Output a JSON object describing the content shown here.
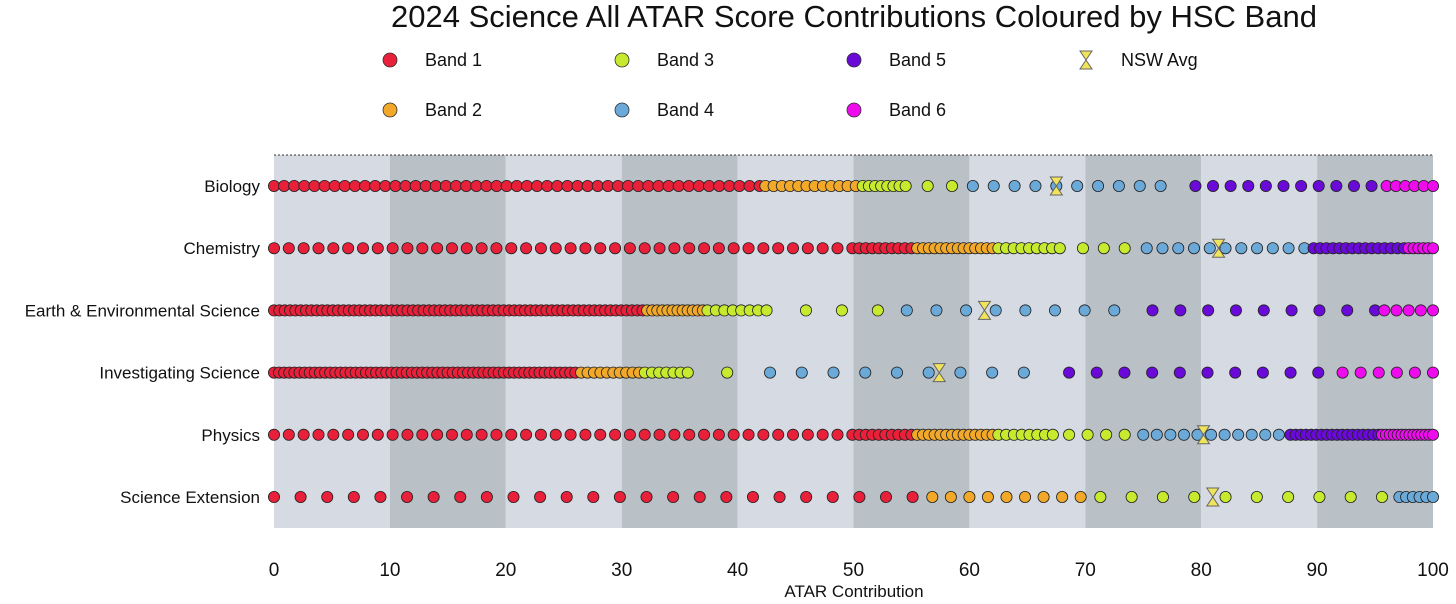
{
  "chart_data": {
    "type": "scatter",
    "title": "2024 Science All ATAR Score Contributions Coloured by HSC Band",
    "xlabel": "ATAR Contribution",
    "ylabel": "",
    "xlim": [
      0,
      100
    ],
    "xticks": [
      "0",
      "10",
      "20",
      "30",
      "40",
      "50",
      "60",
      "70",
      "80",
      "90",
      "100"
    ],
    "bands": [
      {
        "name": "Band 1",
        "color": "#e8203a"
      },
      {
        "name": "Band 2",
        "color": "#f2a92a"
      },
      {
        "name": "Band 3",
        "color": "#c8ea2e"
      },
      {
        "name": "Band 4",
        "color": "#6aa9d8"
      },
      {
        "name": "Band 5",
        "color": "#6a0ad8"
      },
      {
        "name": "Band 6",
        "color": "#ee0cee"
      }
    ],
    "avg_legend": "NSW Avg",
    "avg_color": "#f0e45a",
    "subjects": [
      {
        "name": "Biology",
        "nsw_avg": 67.5,
        "segments": [
          {
            "band": 0,
            "start": 0,
            "end": 41.9,
            "count": 49
          },
          {
            "band": 1,
            "start": 42.4,
            "end": 50.2,
            "count": 12
          },
          {
            "band": 2,
            "start": 50.8,
            "end": 54.5,
            "count": 8
          },
          {
            "band": 2,
            "start": 56.4,
            "end": 58.5,
            "count": 2
          },
          {
            "band": 3,
            "start": 60.3,
            "end": 76.5,
            "count": 10
          },
          {
            "band": 4,
            "start": 79.5,
            "end": 94.7,
            "count": 11
          },
          {
            "band": 5,
            "start": 96.0,
            "end": 100,
            "count": 6
          }
        ]
      },
      {
        "name": "Chemistry",
        "nsw_avg": 81.5,
        "segments": [
          {
            "band": 0,
            "start": 0,
            "end": 49.9,
            "count": 40
          },
          {
            "band": 0,
            "start": 50.5,
            "end": 55.0,
            "count": 9
          },
          {
            "band": 1,
            "start": 55.5,
            "end": 62.0,
            "count": 14
          },
          {
            "band": 2,
            "start": 62.5,
            "end": 67.8,
            "count": 9
          },
          {
            "band": 2,
            "start": 69.8,
            "end": 73.4,
            "count": 3
          },
          {
            "band": 3,
            "start": 75.3,
            "end": 88.9,
            "count": 11
          },
          {
            "band": 4,
            "start": 89.7,
            "end": 97.5,
            "count": 15
          },
          {
            "band": 5,
            "start": 97.9,
            "end": 100,
            "count": 6
          }
        ]
      },
      {
        "name": "Earth & Environmental Science",
        "nsw_avg": 61.3,
        "segments": [
          {
            "band": 0,
            "start": 0,
            "end": 31.8,
            "count": 70
          },
          {
            "band": 1,
            "start": 32.2,
            "end": 37.0,
            "count": 12
          },
          {
            "band": 2,
            "start": 37.4,
            "end": 42.5,
            "count": 8
          },
          {
            "band": 2,
            "start": 45.9,
            "end": 52.1,
            "count": 3
          },
          {
            "band": 3,
            "start": 54.6,
            "end": 72.5,
            "count": 8
          },
          {
            "band": 4,
            "start": 75.8,
            "end": 95.0,
            "count": 9
          },
          {
            "band": 5,
            "start": 95.8,
            "end": 100,
            "count": 5
          }
        ]
      },
      {
        "name": "Investigating Science",
        "nsw_avg": 57.4,
        "segments": [
          {
            "band": 0,
            "start": 0,
            "end": 26.0,
            "count": 60
          },
          {
            "band": 1,
            "start": 26.5,
            "end": 31.5,
            "count": 10
          },
          {
            "band": 2,
            "start": 32.0,
            "end": 35.7,
            "count": 7
          },
          {
            "band": 2,
            "start": 39.1,
            "end": 39.1,
            "count": 1
          },
          {
            "band": 3,
            "start": 42.8,
            "end": 64.7,
            "count": 9
          },
          {
            "band": 4,
            "start": 68.6,
            "end": 90.1,
            "count": 10
          },
          {
            "band": 5,
            "start": 92.2,
            "end": 100,
            "count": 6
          }
        ]
      },
      {
        "name": "Physics",
        "nsw_avg": 80.2,
        "segments": [
          {
            "band": 0,
            "start": 0,
            "end": 49.9,
            "count": 40
          },
          {
            "band": 0,
            "start": 50.5,
            "end": 55.0,
            "count": 9
          },
          {
            "band": 1,
            "start": 55.5,
            "end": 62.0,
            "count": 14
          },
          {
            "band": 2,
            "start": 62.5,
            "end": 67.2,
            "count": 8
          },
          {
            "band": 2,
            "start": 68.6,
            "end": 73.4,
            "count": 4
          },
          {
            "band": 3,
            "start": 75.0,
            "end": 86.7,
            "count": 11
          },
          {
            "band": 4,
            "start": 87.7,
            "end": 95.3,
            "count": 18
          },
          {
            "band": 5,
            "start": 95.6,
            "end": 100,
            "count": 14
          }
        ]
      },
      {
        "name": "Science Extension",
        "nsw_avg": 81.0,
        "segments": [
          {
            "band": 0,
            "start": 0,
            "end": 55.1,
            "count": 25
          },
          {
            "band": 1,
            "start": 56.8,
            "end": 69.6,
            "count": 9
          },
          {
            "band": 2,
            "start": 71.3,
            "end": 95.6,
            "count": 10
          },
          {
            "band": 3,
            "start": 97.1,
            "end": 100,
            "count": 6
          }
        ]
      }
    ]
  }
}
